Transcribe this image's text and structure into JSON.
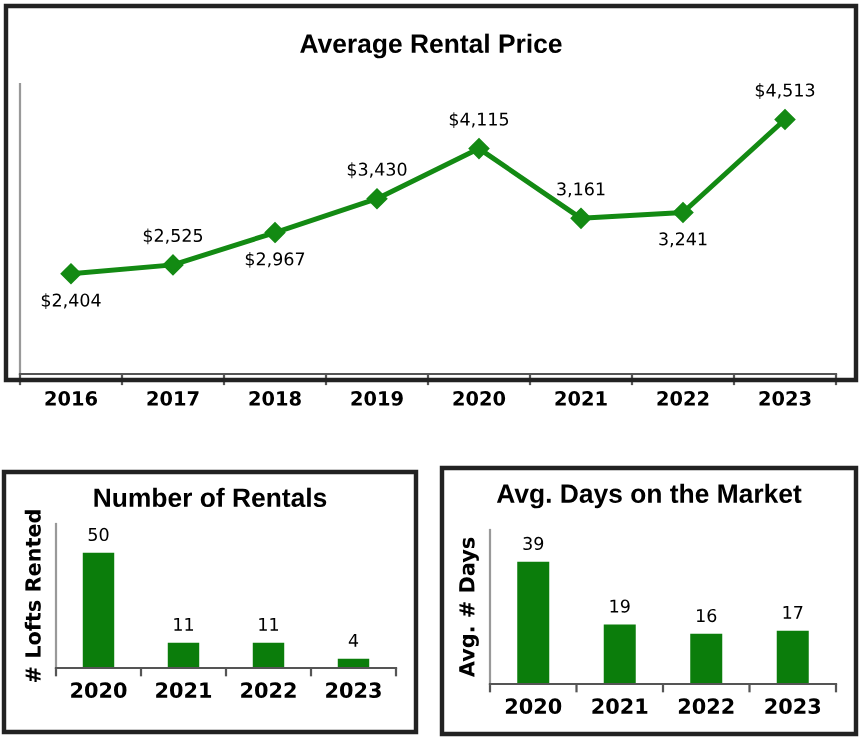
{
  "chart_data": [
    {
      "type": "line",
      "title": "Average Rental Price",
      "categories": [
        "2016",
        "2017",
        "2018",
        "2019",
        "2020",
        "2021",
        "2022",
        "2023"
      ],
      "series": [
        {
          "color": "#138a13",
          "values": [
            2404,
            2525,
            2967,
            3430,
            4115,
            3161,
            3241,
            4513
          ],
          "value_labels": [
            "$2,404",
            "$2,525",
            "$2,967",
            "$3,430",
            "$4,115",
            "3,161",
            "3,241",
            "$4,513"
          ]
        }
      ],
      "marker": "diamond",
      "line_style": "solid",
      "grid": false,
      "legend": false,
      "tick_labels": "x"
    },
    {
      "type": "bar",
      "title": "Number of Rentals",
      "ylabel": "# Lofts Rented",
      "categories": [
        "2020",
        "2021",
        "2022",
        "2023"
      ],
      "series": [
        {
          "color": "#0b7d0b",
          "values": [
            50,
            11,
            11,
            4
          ]
        }
      ],
      "data_labels": true,
      "grid": false,
      "legend": false,
      "tick_labels": "x"
    },
    {
      "type": "bar",
      "title": "Avg. Days on the Market",
      "ylabel": "Avg. # Days",
      "categories": [
        "2020",
        "2021",
        "2022",
        "2023"
      ],
      "series": [
        {
          "color": "#0b7d0b",
          "values": [
            39,
            19,
            16,
            17
          ]
        }
      ],
      "data_labels": true,
      "grid": false,
      "legend": false,
      "tick_labels": "x"
    }
  ]
}
